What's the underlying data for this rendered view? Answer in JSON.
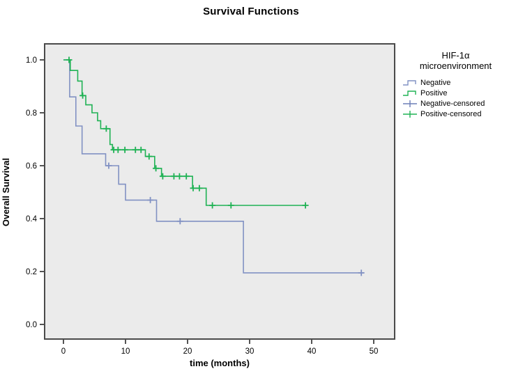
{
  "title": "Survival Functions",
  "axes": {
    "xlabel": "time (months)",
    "ylabel": "Overall Survival"
  },
  "legend": {
    "title_line1": "HIF-1α",
    "title_line2": "microenvironment",
    "items": [
      {
        "label": "Negative",
        "symbol": "step-line",
        "color": "#8191c3"
      },
      {
        "label": "Positive",
        "symbol": "step-line",
        "color": "#1fb254"
      },
      {
        "label": "Negative-censored",
        "symbol": "plus",
        "color": "#6c7eb7"
      },
      {
        "label": "Positive-censored",
        "symbol": "plus",
        "color": "#1fb254"
      }
    ]
  },
  "colors": {
    "negative": "#8191c3",
    "positive": "#1fb254",
    "plot_background": "#ebebeb",
    "frame": "#4a4a4a",
    "tick": "#1a1a1a"
  },
  "chart_data": {
    "type": "line",
    "subtype": "kaplan-meier-step",
    "title": "Survival Functions",
    "xlabel": "time (months)",
    "ylabel": "Overall Survival",
    "xlim": [
      0,
      50
    ],
    "ylim": [
      0.0,
      1.0
    ],
    "x_ticks": [
      "0",
      "10",
      "20",
      "30",
      "40",
      "50"
    ],
    "x_tick_values": [
      0,
      10,
      20,
      30,
      40,
      50
    ],
    "y_ticks": [
      "0.0",
      "0.2",
      "0.4",
      "0.6",
      "0.8",
      "1.0"
    ],
    "y_tick_values": [
      0.0,
      0.2,
      0.4,
      0.6,
      0.8,
      1.0
    ],
    "grid": false,
    "legend_position": "right",
    "legend_title": "HIF-1α microenvironment",
    "series": [
      {
        "name": "Negative",
        "color": "#8191c3",
        "end_time": 48.4,
        "steps": [
          [
            0,
            1.0
          ],
          [
            1,
            0.86
          ],
          [
            2,
            0.75
          ],
          [
            3,
            0.645
          ],
          [
            6.8,
            0.6
          ],
          [
            8.9,
            0.53
          ],
          [
            10,
            0.47
          ],
          [
            15,
            0.39
          ],
          [
            29,
            0.195
          ]
        ],
        "censored": [
          [
            7.3,
            0.6
          ],
          [
            14,
            0.47
          ],
          [
            18.8,
            0.39
          ],
          [
            48,
            0.195
          ]
        ]
      },
      {
        "name": "Positive",
        "color": "#1fb254",
        "end_time": 39,
        "steps": [
          [
            0,
            1.0
          ],
          [
            1.1,
            0.96
          ],
          [
            2.3,
            0.92
          ],
          [
            3,
            0.865
          ],
          [
            3.6,
            0.83
          ],
          [
            4.6,
            0.8
          ],
          [
            5.5,
            0.77
          ],
          [
            6,
            0.74
          ],
          [
            7.5,
            0.68
          ],
          [
            7.9,
            0.66
          ],
          [
            13.2,
            0.635
          ],
          [
            14.7,
            0.59
          ],
          [
            15.8,
            0.56
          ],
          [
            20.8,
            0.515
          ],
          [
            23,
            0.45
          ]
        ],
        "censored": [
          [
            0.9,
            1.0
          ],
          [
            3.1,
            0.865
          ],
          [
            6.9,
            0.74
          ],
          [
            8.1,
            0.66
          ],
          [
            8.8,
            0.66
          ],
          [
            9.9,
            0.66
          ],
          [
            11.6,
            0.66
          ],
          [
            12.5,
            0.66
          ],
          [
            13.8,
            0.635
          ],
          [
            14.9,
            0.59
          ],
          [
            16,
            0.56
          ],
          [
            17.8,
            0.56
          ],
          [
            18.7,
            0.56
          ],
          [
            19.8,
            0.56
          ],
          [
            20.9,
            0.515
          ],
          [
            21.9,
            0.515
          ],
          [
            24,
            0.45
          ],
          [
            27,
            0.45
          ],
          [
            39,
            0.45
          ]
        ]
      }
    ]
  }
}
